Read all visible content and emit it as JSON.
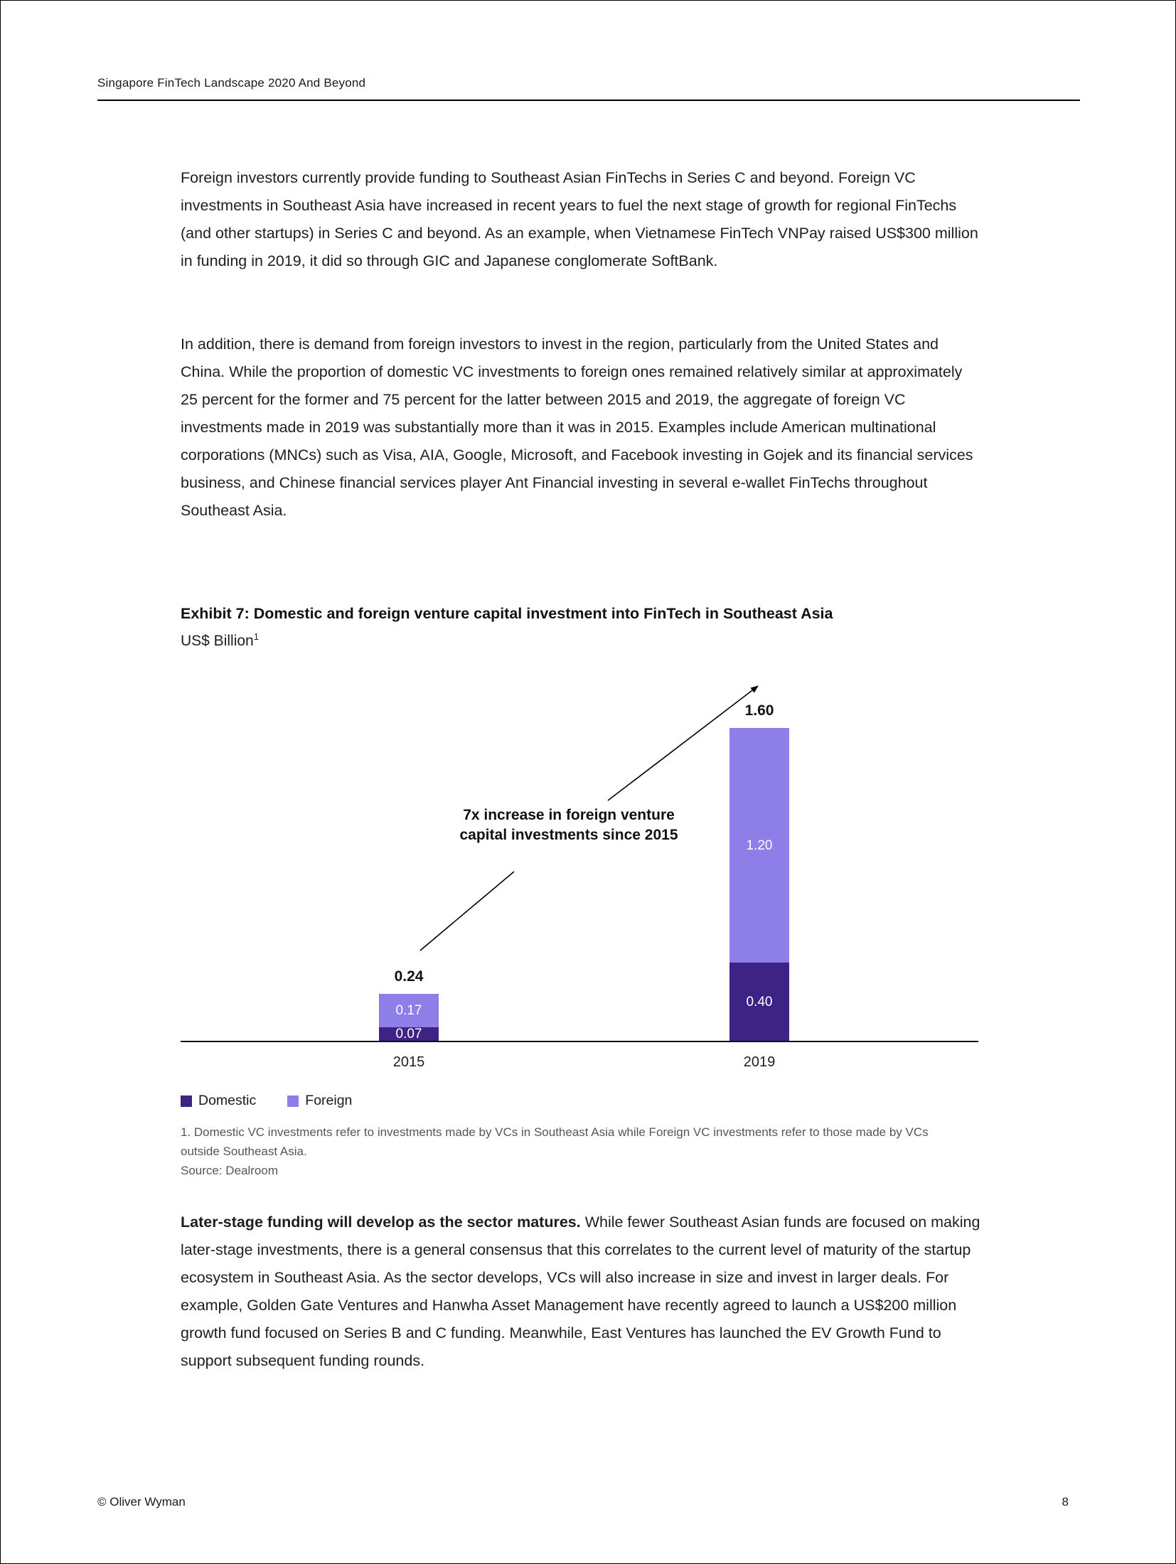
{
  "document": {
    "header": "Singapore FinTech Landscape 2020 And Beyond",
    "footer_left": "© Oliver Wyman",
    "page_number": "8"
  },
  "body": {
    "p1": "Foreign investors currently provide funding to Southeast Asian FinTechs in Series C and beyond. Foreign VC investments in Southeast Asia have increased in recent years to fuel the next stage of growth for regional FinTechs (and other startups) in Series C and beyond. As an example, when Vietnamese FinTech VNPay raised US$300 million in funding in 2019, it did so through GIC and Japanese conglomerate SoftBank.",
    "p2": "In addition, there is demand from foreign investors to invest in the region, particularly from the United States and China. While the proportion of domestic VC investments to foreign ones remained relatively similar at approximately 25 percent for the former and 75 percent for the latter between 2015 and 2019, the aggregate of foreign VC investments made in 2019 was substantially more than it was in 2015. Examples include American multinational corporations (MNCs) such as Visa, AIA, Google, Microsoft, and Facebook investing in Gojek and its financial services business, and Chinese financial services player Ant Financial investing in several e-wallet FinTechs throughout Southeast Asia.",
    "p3_lead": "Later-stage funding will develop as the sector matures.",
    "p3_rest": "While fewer Southeast Asian funds are focused on making later-stage investments, there is a general consensus that this correlates to the current level of maturity of the startup ecosystem in Southeast Asia. As the sector develops, VCs will also increase in size and invest in larger deals. For example, Golden Gate Ventures and Hanwha Asset Management have recently agreed to launch a US$200 million growth fund focused on Series B and C funding. Meanwhile, East Ventures has launched the EV Growth Fund to support subsequent funding rounds."
  },
  "exhibit": {
    "title": "Exhibit 7: Domestic and foreign venture capital investment into FinTech in Southeast Asia",
    "unit": "US$ Billion",
    "unit_note_ref": "1",
    "footnote": "1. Domestic VC investments refer to investments made by VCs in Southeast Asia while Foreign VC investments refer to those made by VCs outside Southeast Asia.",
    "source": "Source: Dealroom"
  },
  "chart_data": {
    "type": "bar",
    "stacked": true,
    "title": "Exhibit 7: Domestic and foreign venture capital investment into FinTech in Southeast Asia",
    "ylabel": "US$ Billion",
    "categories": [
      "2015",
      "2019"
    ],
    "series": [
      {
        "name": "Domestic",
        "color": "#3D2484",
        "values": [
          0.07,
          0.4
        ]
      },
      {
        "name": "Foreign",
        "color": "#8D7EE8",
        "values": [
          0.17,
          1.2
        ]
      }
    ],
    "totals": [
      0.24,
      1.6
    ],
    "annotation": "7x increase in foreign venture capital investments since 2015",
    "annotation_lines": [
      "7x increase in foreign venture",
      "capital investments since 2015"
    ],
    "ylim": [
      0,
      1.7
    ],
    "grid": false,
    "legend_position": "bottom-left"
  }
}
